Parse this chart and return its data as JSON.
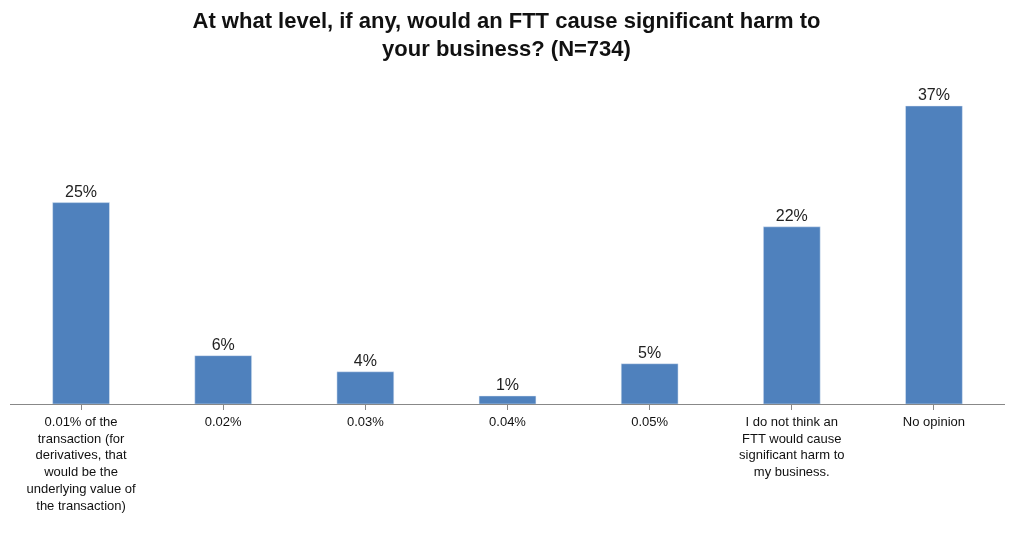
{
  "chart_data": {
    "type": "bar",
    "title": "At what level, if any, would an FTT cause significant harm to your business? (N=734)",
    "categories": [
      "0.01% of the transaction (for derivatives, that would be the underlying value of the transaction)",
      "0.02%",
      "0.03%",
      "0.04%",
      "0.05%",
      "I do not think an FTT would cause significant harm to my business.",
      "No opinion"
    ],
    "values": [
      25,
      6,
      4,
      1,
      5,
      22,
      37
    ],
    "value_labels": [
      "25%",
      "6%",
      "4%",
      "1%",
      "5%",
      "22%",
      "37%"
    ],
    "color": "#4f81bd",
    "legend": false
  }
}
